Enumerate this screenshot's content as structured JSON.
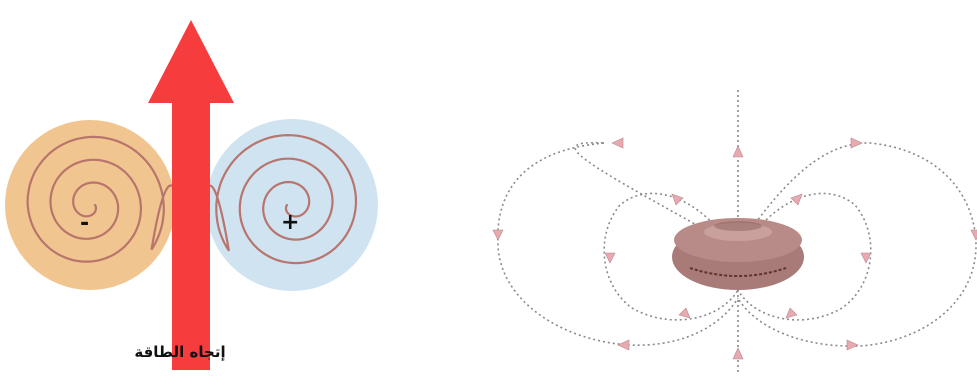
{
  "labels": {
    "caption": "إتجاه الطاقة",
    "negative_sign": "-",
    "positive_sign": "+"
  },
  "colors": {
    "energy_arrow": "#f73c3e",
    "negative_vortex_fill": "#f1c58f",
    "positive_vortex_fill": "#cfe3f1",
    "spiral_line": "#b8756d",
    "field_line": "#8a8a8a",
    "field_arrowhead": "#e9a9b1",
    "torus_fill": "#a87a78"
  },
  "icons": {
    "energy_direction": "up-arrow-icon"
  }
}
